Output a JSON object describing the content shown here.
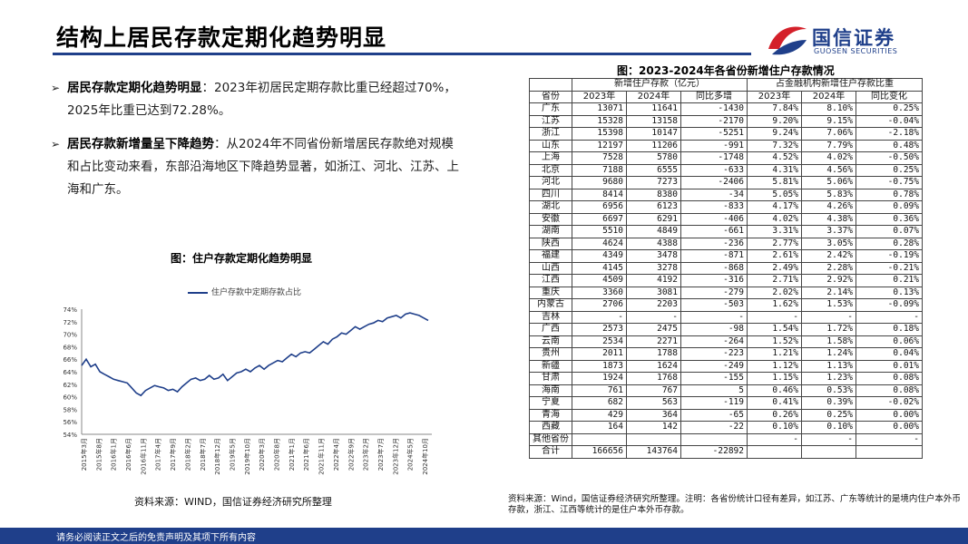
{
  "page": {
    "title": "结构上居民存款定期化趋势明显"
  },
  "logo": {
    "cn": "国信证券",
    "en": "GUOSEN SECURITIES"
  },
  "bullets": [
    {
      "head": "居民存款定期化趋势明显",
      "body": "：2023年初居民定期存款比重已经超过70%，2025年比重已达到72.28%。"
    },
    {
      "head": "居民存款新增量呈下降趋势",
      "body": "：从2024年不同省份新增居民存款绝对规模和占比变动来看，东部沿海地区下降趋势显著，如浙江、河北、江苏、上海和广东。"
    }
  ],
  "chart_data": {
    "type": "line",
    "title": "图：住户存款定期化趋势明显",
    "series_name": "住户存款中定期存款占比",
    "ylim": [
      54,
      74
    ],
    "yticks": [
      "74%",
      "72%",
      "70%",
      "68%",
      "66%",
      "64%",
      "62%",
      "60%",
      "58%",
      "56%",
      "54%"
    ],
    "xticks": [
      "2015年3月",
      "2015年8月",
      "2016年1月",
      "2016年6月",
      "2016年11月",
      "2017年4月",
      "2017年9月",
      "2018年2月",
      "2018年7月",
      "2018年12月",
      "2019年5月",
      "2019年10月",
      "2020年3月",
      "2020年8月",
      "2021年1月",
      "2021年6月",
      "2021年11月",
      "2022年4月",
      "2022年9月",
      "2023年2月",
      "2023年7月",
      "2023年12月",
      "2024年5月",
      "2024年10月"
    ],
    "series": [
      {
        "name": "住户存款中定期存款占比",
        "values": [
          65.0,
          66.0,
          64.8,
          65.2,
          64.0,
          63.6,
          63.2,
          62.8,
          62.6,
          62.4,
          62.2,
          61.4,
          60.6,
          60.2,
          61.0,
          61.4,
          61.8,
          61.6,
          61.4,
          61.0,
          61.2,
          60.8,
          61.6,
          62.2,
          62.8,
          63.0,
          62.6,
          62.8,
          63.4,
          62.8,
          63.0,
          63.6,
          62.6,
          63.2,
          63.8,
          64.0,
          64.4,
          64.0,
          64.6,
          65.0,
          64.4,
          65.0,
          65.4,
          65.8,
          65.6,
          66.2,
          66.8,
          66.4,
          67.0,
          67.2,
          67.0,
          67.6,
          68.2,
          68.8,
          68.4,
          69.2,
          69.6,
          70.2,
          70.0,
          70.6,
          71.2,
          70.8,
          71.2,
          71.6,
          71.8,
          72.2,
          72.0,
          72.6,
          72.8,
          73.0,
          72.6,
          73.2,
          73.4,
          73.2,
          73.0,
          72.6,
          72.2
        ]
      }
    ],
    "source": "资料来源：WIND，国信证券经济研究所整理"
  },
  "table": {
    "title": "图：2023-2024年各省份新增住户存款情况",
    "group1": "新增住户存款（亿元）",
    "group2": "占金融机构新增住户存款比重",
    "headers": [
      "省份",
      "2023年",
      "2024年",
      "同比多增",
      "2023年",
      "2024年",
      "同比变化"
    ],
    "rows": [
      [
        "广东",
        "13071",
        "11641",
        "-1430",
        "7.84%",
        "8.10%",
        "0.25%"
      ],
      [
        "江苏",
        "15328",
        "13158",
        "-2170",
        "9.20%",
        "9.15%",
        "-0.04%"
      ],
      [
        "浙江",
        "15398",
        "10147",
        "-5251",
        "9.24%",
        "7.06%",
        "-2.18%"
      ],
      [
        "山东",
        "12197",
        "11206",
        "-991",
        "7.32%",
        "7.79%",
        "0.48%"
      ],
      [
        "上海",
        "7528",
        "5780",
        "-1748",
        "4.52%",
        "4.02%",
        "-0.50%"
      ],
      [
        "北京",
        "7188",
        "6555",
        "-633",
        "4.31%",
        "4.56%",
        "0.25%"
      ],
      [
        "河北",
        "9680",
        "7273",
        "-2406",
        "5.81%",
        "5.06%",
        "-0.75%"
      ],
      [
        "四川",
        "8414",
        "8380",
        "-34",
        "5.05%",
        "5.83%",
        "0.78%"
      ],
      [
        "湖北",
        "6956",
        "6123",
        "-833",
        "4.17%",
        "4.26%",
        "0.09%"
      ],
      [
        "安徽",
        "6697",
        "6291",
        "-406",
        "4.02%",
        "4.38%",
        "0.36%"
      ],
      [
        "湖南",
        "5510",
        "4849",
        "-661",
        "3.31%",
        "3.37%",
        "0.07%"
      ],
      [
        "陕西",
        "4624",
        "4388",
        "-236",
        "2.77%",
        "3.05%",
        "0.28%"
      ],
      [
        "福建",
        "4349",
        "3478",
        "-871",
        "2.61%",
        "2.42%",
        "-0.19%"
      ],
      [
        "山西",
        "4145",
        "3278",
        "-868",
        "2.49%",
        "2.28%",
        "-0.21%"
      ],
      [
        "江西",
        "4509",
        "4192",
        "-316",
        "2.71%",
        "2.92%",
        "0.21%"
      ],
      [
        "重庆",
        "3360",
        "3081",
        "-279",
        "2.02%",
        "2.14%",
        "0.13%"
      ],
      [
        "内蒙古",
        "2706",
        "2203",
        "-503",
        "1.62%",
        "1.53%",
        "-0.09%"
      ],
      [
        "吉林",
        "-",
        "-",
        "-",
        "-",
        "-",
        "-"
      ],
      [
        "广西",
        "2573",
        "2475",
        "-98",
        "1.54%",
        "1.72%",
        "0.18%"
      ],
      [
        "云南",
        "2534",
        "2271",
        "-264",
        "1.52%",
        "1.58%",
        "0.06%"
      ],
      [
        "贵州",
        "2011",
        "1788",
        "-223",
        "1.21%",
        "1.24%",
        "0.04%"
      ],
      [
        "新疆",
        "1873",
        "1624",
        "-249",
        "1.12%",
        "1.13%",
        "0.01%"
      ],
      [
        "甘肃",
        "1924",
        "1768",
        "-155",
        "1.15%",
        "1.23%",
        "0.08%"
      ],
      [
        "海南",
        "761",
        "767",
        "5",
        "0.46%",
        "0.53%",
        "0.08%"
      ],
      [
        "宁夏",
        "682",
        "563",
        "-119",
        "0.41%",
        "0.39%",
        "-0.02%"
      ],
      [
        "青海",
        "429",
        "364",
        "-65",
        "0.26%",
        "0.25%",
        "0.00%"
      ],
      [
        "西藏",
        "164",
        "142",
        "-22",
        "0.10%",
        "0.10%",
        "0.00%"
      ],
      [
        "其他省份",
        "",
        "",
        "",
        "-",
        "-",
        "-"
      ],
      [
        "合计",
        "166656",
        "143764",
        "-22892",
        "",
        "",
        ""
      ]
    ],
    "source": "资料来源：Wind，国信证券经济研究所整理。注明：各省份统计口径有差异，如江苏、广东等统计的是境内住户本外币存款，浙江、江西等统计的是住户本外币存款。"
  },
  "footer": {
    "text": "请务必阅读正文之后的免责声明及其项下所有内容"
  },
  "colors": {
    "brand_blue": "#1f3f8a",
    "logo_red": "#d4202a",
    "line": "#1f3f8a"
  }
}
